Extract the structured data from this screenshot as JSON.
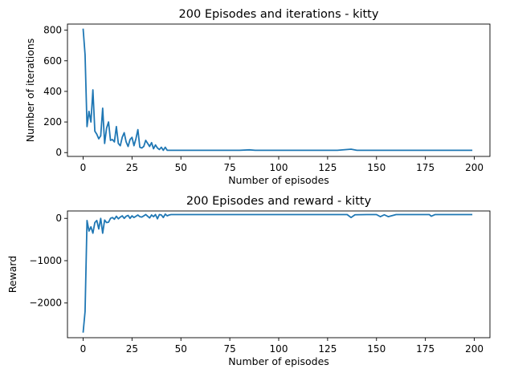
{
  "chart_data": [
    {
      "type": "line",
      "title": "200 Episodes and iterations - kitty",
      "xlabel": "Number of episodes",
      "ylabel": "Number of iterations",
      "xlim": [
        -8,
        208
      ],
      "ylim": [
        -25,
        840
      ],
      "xticks": [
        0,
        25,
        50,
        75,
        100,
        125,
        150,
        175,
        200
      ],
      "yticks": [
        0,
        200,
        400,
        600,
        800
      ],
      "grid": false,
      "color": "#1f77b4",
      "series": [
        {
          "x": [
            0,
            1,
            2,
            3,
            4,
            5,
            6,
            7,
            8,
            9,
            10,
            11,
            12,
            13,
            14,
            15,
            16,
            17,
            18,
            19,
            20,
            21,
            22,
            23,
            24,
            25,
            26,
            27,
            28,
            29,
            30,
            31,
            32,
            33,
            34,
            35,
            36,
            37,
            38,
            39,
            40,
            41,
            42,
            43,
            44,
            45,
            50,
            60,
            70,
            80,
            85,
            88,
            90,
            100,
            110,
            120,
            130,
            137,
            140,
            150,
            160,
            170,
            180,
            190,
            199
          ],
          "y": [
            810,
            640,
            170,
            270,
            200,
            410,
            140,
            120,
            90,
            110,
            290,
            60,
            160,
            200,
            80,
            85,
            70,
            170,
            60,
            45,
            100,
            130,
            70,
            40,
            85,
            100,
            45,
            90,
            150,
            35,
            30,
            40,
            80,
            60,
            40,
            65,
            25,
            50,
            30,
            20,
            35,
            15,
            35,
            15,
            15,
            15,
            15,
            15,
            15,
            15,
            18,
            15,
            15,
            15,
            15,
            15,
            15,
            22,
            15,
            15,
            15,
            15,
            15,
            15,
            15
          ]
        }
      ]
    },
    {
      "type": "line",
      "title": "200 Episodes and reward - kitty",
      "xlabel": "Number of episodes",
      "ylabel": "Reward",
      "xlim": [
        -8,
        208
      ],
      "ylim": [
        -2820,
        175
      ],
      "xticks": [
        0,
        25,
        50,
        75,
        100,
        125,
        150,
        175,
        200
      ],
      "yticks": [
        0,
        -1000,
        -2000
      ],
      "grid": false,
      "color": "#1f77b4",
      "series": [
        {
          "x": [
            0,
            1,
            2,
            3,
            4,
            5,
            6,
            7,
            8,
            9,
            10,
            11,
            12,
            13,
            14,
            15,
            16,
            17,
            18,
            19,
            20,
            21,
            22,
            23,
            24,
            25,
            26,
            27,
            28,
            29,
            30,
            31,
            32,
            33,
            34,
            35,
            36,
            37,
            38,
            39,
            40,
            41,
            42,
            43,
            44,
            45,
            50,
            60,
            70,
            80,
            90,
            100,
            110,
            120,
            130,
            135,
            137,
            139,
            145,
            150,
            152,
            154,
            156,
            160,
            170,
            177,
            178,
            180,
            190,
            199
          ],
          "y": [
            -2700,
            -2200,
            -50,
            -300,
            -200,
            -350,
            -100,
            -50,
            -250,
            0,
            -350,
            -40,
            -100,
            -90,
            0,
            20,
            -20,
            50,
            -10,
            30,
            60,
            0,
            50,
            70,
            0,
            60,
            20,
            50,
            80,
            40,
            30,
            60,
            90,
            50,
            10,
            80,
            40,
            90,
            -10,
            90,
            80,
            20,
            100,
            60,
            80,
            90,
            90,
            90,
            90,
            90,
            90,
            90,
            90,
            90,
            90,
            90,
            20,
            85,
            90,
            90,
            40,
            85,
            40,
            90,
            90,
            90,
            50,
            90,
            90,
            90
          ]
        }
      ]
    }
  ]
}
